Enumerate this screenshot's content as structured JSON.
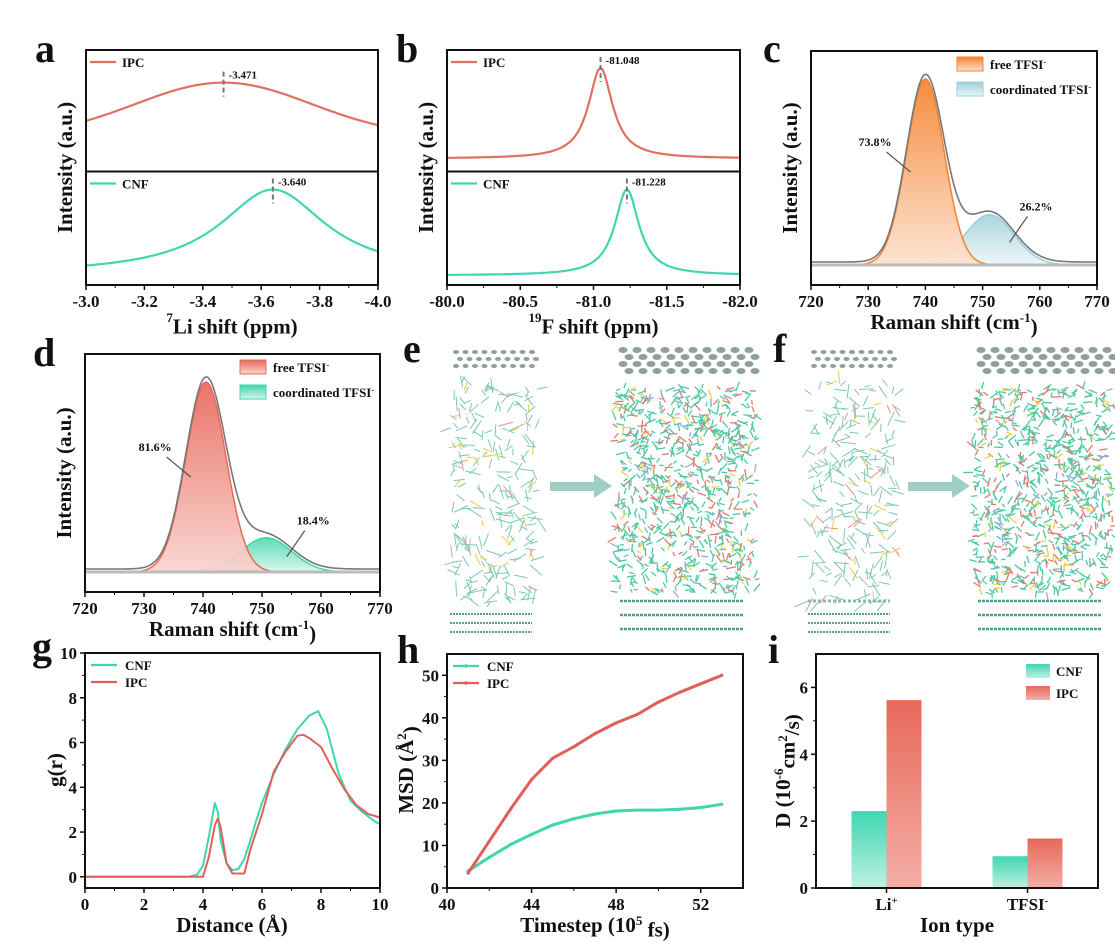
{
  "figure": {
    "panel_labels": [
      "a",
      "b",
      "c",
      "d",
      "e",
      "f",
      "g",
      "h",
      "i"
    ]
  },
  "chart_data": [
    {
      "id": "a",
      "type": "line",
      "title": "",
      "xlabel_sup": "7",
      "xlabel": "Li shift (ppm)",
      "ylabel": "Intensity (a.u.)",
      "xlim": [
        -3.0,
        -4.0
      ],
      "xticks": [
        "-3.0",
        "-3.2",
        "-3.4",
        "-3.6",
        "-3.8",
        "-4.0"
      ],
      "xtick_values": [
        -3.0,
        -3.2,
        -3.4,
        -3.6,
        -3.8,
        -4.0
      ],
      "stacked": true,
      "series": [
        {
          "name": "IPC",
          "color": "#e07060",
          "peak": -3.471,
          "peak_label": "-3.471",
          "width": 0.3,
          "base": 0.35,
          "shape": "gauss"
        },
        {
          "name": "CNF",
          "color": "#3fd6b0",
          "peak": -3.64,
          "peak_label": "-3.640",
          "width": 0.22,
          "base": 0.05,
          "shape": "lorentz"
        }
      ]
    },
    {
      "id": "b",
      "type": "line",
      "title": "",
      "xlabel_sup": "19",
      "xlabel": "F shift (ppm)",
      "ylabel": "Intensity (a.u.)",
      "xlim": [
        -80.0,
        -82.0
      ],
      "xticks": [
        "-80.0",
        "-80.5",
        "-81.0",
        "-81.5",
        "-82.0"
      ],
      "xtick_values": [
        -80.0,
        -80.5,
        -81.0,
        -81.5,
        -82.0
      ],
      "stacked": true,
      "series": [
        {
          "name": "IPC",
          "color": "#e07060",
          "peak": -81.048,
          "peak_label": "-81.048",
          "width": 0.1,
          "base": 0.07,
          "shape": "lorentz"
        },
        {
          "name": "CNF",
          "color": "#3fd6b0",
          "peak": -81.228,
          "peak_label": "-81.228",
          "width": 0.1,
          "base": 0.04,
          "shape": "lorentz"
        }
      ]
    },
    {
      "id": "c",
      "type": "area",
      "title": "",
      "xlabel": "Raman shift (cm",
      "xlabel_sup": "-1",
      "xlabel_end": ")",
      "ylabel": "Intensity (a.u.)",
      "xlim": [
        720,
        770
      ],
      "xticks": [
        "720",
        "730",
        "740",
        "750",
        "760",
        "770"
      ],
      "xtick_values": [
        720,
        730,
        740,
        750,
        760,
        770
      ],
      "legend": "top-right",
      "series": [
        {
          "name": "free TFSI",
          "sup": "-",
          "center": 740,
          "sigma": 3.3,
          "amp": 1.0,
          "color": "#f5822e",
          "light": "#fbd6bd",
          "percent": "73.8%"
        },
        {
          "name": "coordinated TFSI",
          "sup": "-",
          "center": 751.2,
          "sigma": 4.3,
          "amp": 0.27,
          "color": "#9ccfda",
          "light": "#e4f3f6",
          "percent": "26.2%"
        }
      ]
    },
    {
      "id": "d",
      "type": "area",
      "title": "",
      "xlabel": "Raman shift (cm",
      "xlabel_sup": "-1",
      "xlabel_end": ")",
      "ylabel": "Intensity (a.u.)",
      "xlim": [
        720,
        770
      ],
      "xticks": [
        "720",
        "730",
        "740",
        "750",
        "760",
        "770"
      ],
      "xtick_values": [
        720,
        730,
        740,
        750,
        760,
        770
      ],
      "legend": "top-right",
      "series": [
        {
          "name": "free TFSI",
          "sup": "-",
          "center": 740.5,
          "sigma": 3.4,
          "amp": 1.0,
          "color": "#e8685a",
          "light": "#f6c8c0",
          "percent": "81.6%"
        },
        {
          "name": "coordinated TFSI",
          "sup": "-",
          "center": 750.7,
          "sigma": 4.3,
          "amp": 0.18,
          "color": "#3fd6a8",
          "light": "#c8f3e6",
          "percent": "18.4%"
        }
      ]
    },
    {
      "id": "g",
      "type": "line",
      "title": "",
      "xlabel": "Distance (Å)",
      "ylabel": "g(r)",
      "xlim": [
        0,
        10
      ],
      "ylim": [
        -0.5,
        10
      ],
      "xticks": [
        "0",
        "2",
        "4",
        "6",
        "8",
        "10"
      ],
      "xtick_values": [
        0,
        2,
        4,
        6,
        8,
        10
      ],
      "yticks": [
        "0",
        "2",
        "4",
        "6",
        "8",
        "10"
      ],
      "ytick_values": [
        0,
        2,
        4,
        6,
        8,
        10
      ],
      "legend": "top-left",
      "series": [
        {
          "name": "CNF",
          "color": "#3fd6b0",
          "x": [
            0,
            3.5,
            3.8,
            4.0,
            4.2,
            4.4,
            4.5,
            4.6,
            4.8,
            5.0,
            5.2,
            5.4,
            5.6,
            5.8,
            6.0,
            6.4,
            6.8,
            7.2,
            7.6,
            7.9,
            8.2,
            8.6,
            9.0,
            9.4,
            9.8,
            10
          ],
          "y": [
            0,
            0,
            0.1,
            0.5,
            1.8,
            3.3,
            2.9,
            1.6,
            0.6,
            0.3,
            0.35,
            0.8,
            1.6,
            2.5,
            3.3,
            4.6,
            5.7,
            6.6,
            7.2,
            7.4,
            6.6,
            4.6,
            3.4,
            2.9,
            2.5,
            2.35
          ]
        },
        {
          "name": "IPC",
          "color": "#e06058",
          "x": [
            0,
            3.9,
            4.0,
            4.2,
            4.4,
            4.5,
            4.6,
            4.8,
            5.0,
            5.2,
            5.4,
            5.6,
            5.8,
            6.0,
            6.4,
            6.8,
            7.2,
            7.4,
            7.6,
            8.0,
            8.4,
            8.8,
            9.2,
            9.6,
            10
          ],
          "y": [
            0,
            0,
            0.0,
            0.9,
            2.3,
            2.6,
            2.2,
            0.6,
            0.15,
            0.15,
            0.15,
            1.2,
            2.0,
            2.8,
            4.7,
            5.6,
            6.3,
            6.35,
            6.2,
            5.8,
            4.8,
            3.9,
            3.2,
            2.8,
            2.65
          ]
        }
      ]
    },
    {
      "id": "h",
      "type": "line",
      "title": "",
      "xlabel": "Timestep (10",
      "xlabel_sup": "5",
      "xlabel_end": " fs)",
      "ylabel": "MSD (Å",
      "ylabel_sup": "2",
      "ylabel_end": ")",
      "xlim": [
        40,
        54
      ],
      "ylim": [
        0,
        55
      ],
      "xticks": [
        "40",
        "44",
        "48",
        "52"
      ],
      "xtick_values": [
        40,
        44,
        48,
        52
      ],
      "yticks": [
        "0",
        "10",
        "20",
        "30",
        "40",
        "50"
      ],
      "ytick_values": [
        0,
        10,
        20,
        30,
        40,
        50
      ],
      "legend": "top-left",
      "series": [
        {
          "name": "CNF",
          "color": "#3fd6b0",
          "x": [
            41,
            42,
            43,
            44,
            45,
            46,
            47,
            48,
            49,
            50,
            51,
            52,
            53
          ],
          "y": [
            4,
            7.2,
            10.2,
            12.6,
            14.8,
            16.3,
            17.4,
            18.1,
            18.3,
            18.3,
            18.5,
            18.9,
            19.7
          ]
        },
        {
          "name": "IPC",
          "color": "#e06058",
          "x": [
            41,
            42,
            43,
            44,
            45,
            46,
            47,
            48,
            49,
            50,
            51,
            52,
            53
          ],
          "y": [
            3.5,
            11,
            18.5,
            25.5,
            30.5,
            33.2,
            36.3,
            38.8,
            40.8,
            43.7,
            46,
            48,
            50
          ]
        }
      ]
    },
    {
      "id": "i",
      "type": "bar",
      "title": "",
      "xlabel": "Ion type",
      "ylabel": "D (10",
      "ylabel_sup": "-6",
      "ylabel_mid": "cm",
      "ylabel_sup2": "2",
      "ylabel_end": "/s)",
      "categories": [
        "Li",
        "TFSI"
      ],
      "category_sups": [
        "+",
        "-"
      ],
      "ylim": [
        0,
        7
      ],
      "yticks": [
        "0",
        "2",
        "4",
        "6"
      ],
      "ytick_values": [
        0,
        2,
        4,
        6
      ],
      "legend": "top-right",
      "series": [
        {
          "name": "CNF",
          "values": [
            2.3,
            0.95
          ],
          "color": "#3fd6b0",
          "light": "#c0f0e2"
        },
        {
          "name": "IPC",
          "values": [
            5.62,
            1.48
          ],
          "color": "#e8685a",
          "light": "#f4b0a8"
        }
      ]
    }
  ],
  "snapshots": [
    {
      "id": "e",
      "arrow_color": "#9ecfc4"
    },
    {
      "id": "f",
      "arrow_color": "#9ecfc4"
    }
  ]
}
